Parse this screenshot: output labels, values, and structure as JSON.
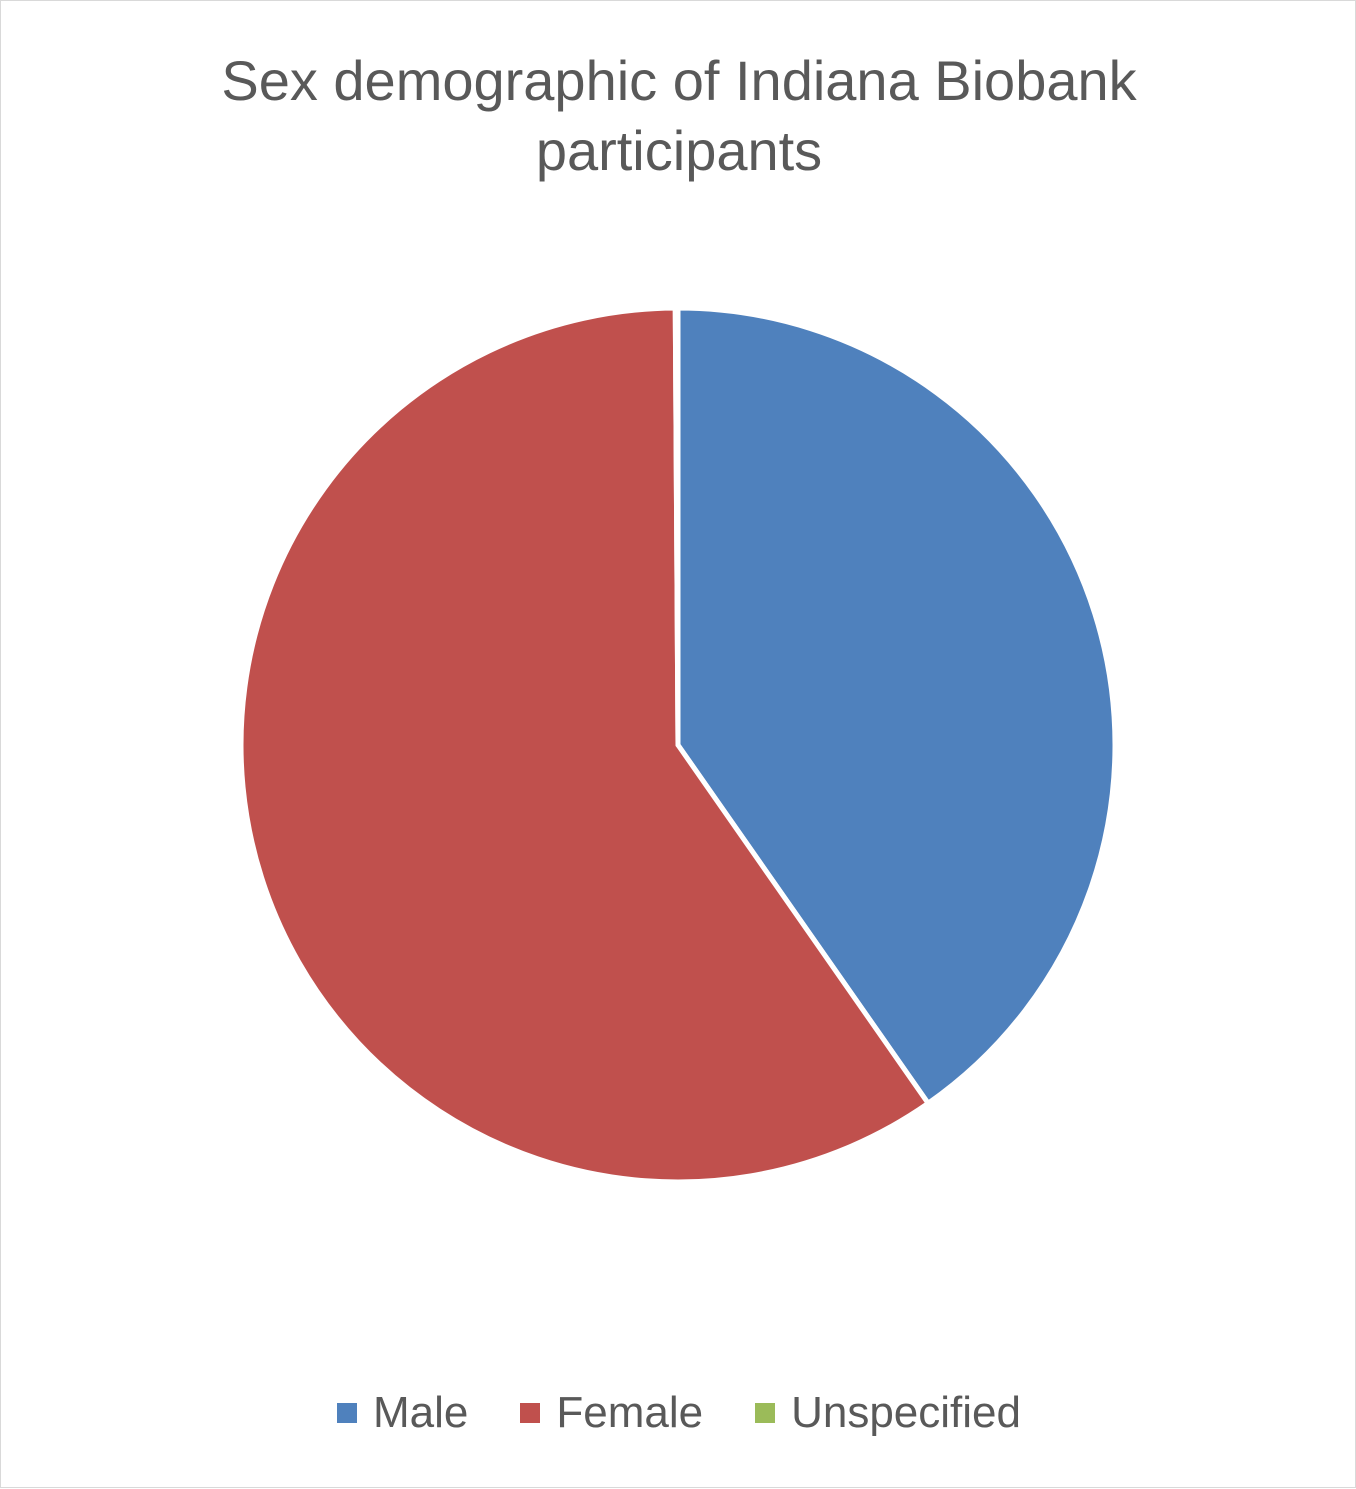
{
  "chart_data": {
    "type": "pie",
    "title": "Sex demographic of Indiana Biobank participants",
    "categories": [
      "Male",
      "Female",
      "Unspecified"
    ],
    "values": [
      40.3,
      59.6,
      0.1
    ],
    "unit": "percent (estimated from slice angles)",
    "colors": [
      "#4f81bd",
      "#c0504d",
      "#9bbb59"
    ],
    "start_angle": "12 o'clock, clockwise",
    "legend_position": "bottom"
  }
}
